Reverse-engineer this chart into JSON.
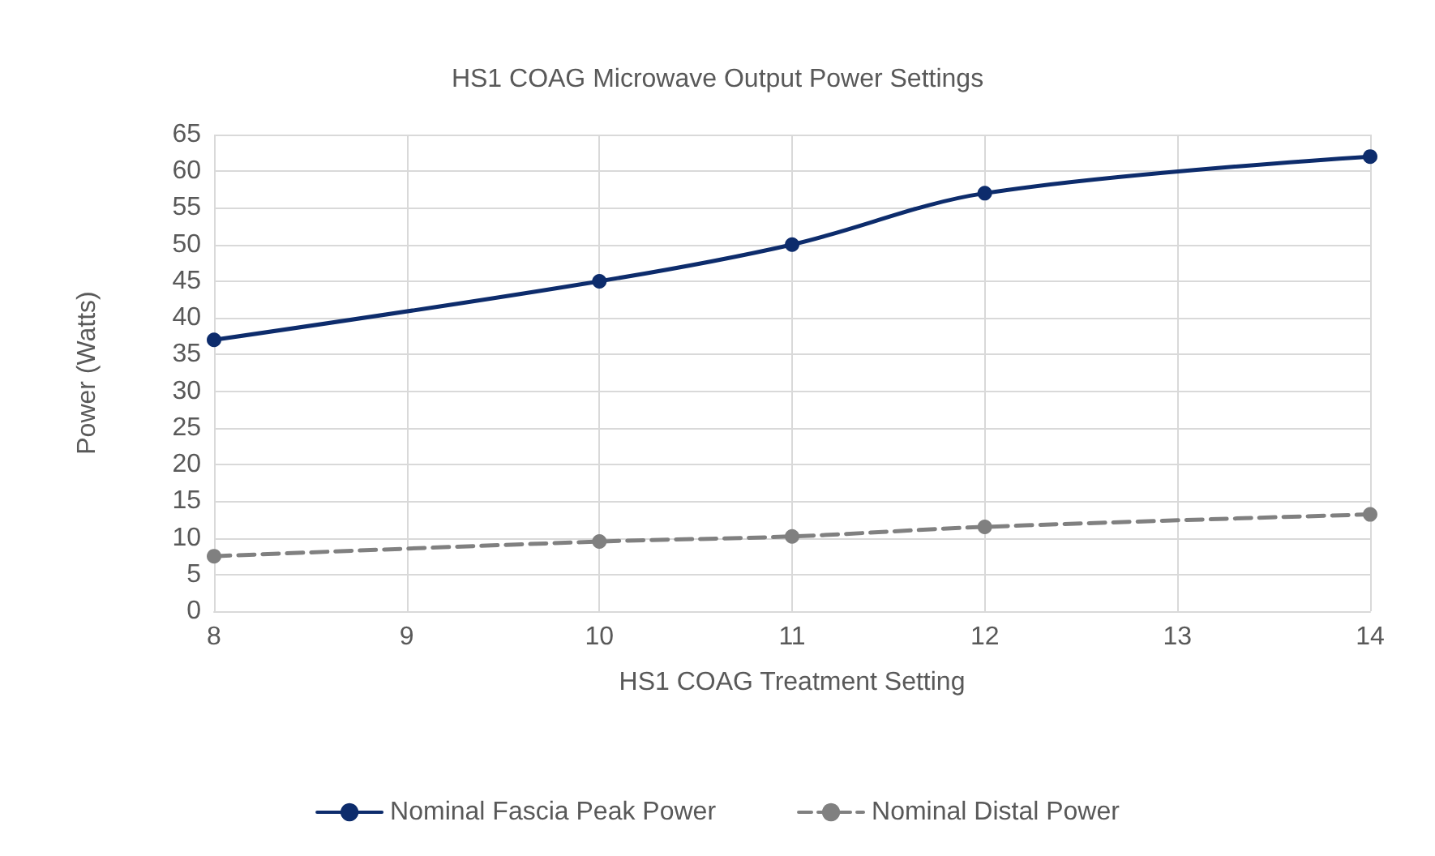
{
  "chart_data": {
    "type": "line",
    "title": "HS1 COAG Microwave Output Power Settings",
    "xlabel": "HS1 COAG Treatment Setting",
    "ylabel": "Power (Watts)",
    "x": [
      8,
      10,
      11,
      12,
      14
    ],
    "series": [
      {
        "name": "Nominal Fascia Peak Power",
        "color": "#0d2c6c",
        "values": [
          37,
          45,
          50,
          57,
          62
        ],
        "line_style": "solid"
      },
      {
        "name": "Nominal Distal Power",
        "color": "#808080",
        "values": [
          7.5,
          9.5,
          10.2,
          11.5,
          13.2
        ],
        "line_style": "dashed"
      }
    ],
    "xlim": [
      8,
      14
    ],
    "xticks": [
      8,
      9,
      10,
      11,
      12,
      13,
      14
    ],
    "ylim": [
      0,
      65
    ],
    "yticks": [
      0,
      5,
      10,
      15,
      20,
      25,
      30,
      35,
      40,
      45,
      50,
      55,
      60,
      65
    ],
    "grid": true,
    "legend": "bottom",
    "marker": "circle"
  }
}
